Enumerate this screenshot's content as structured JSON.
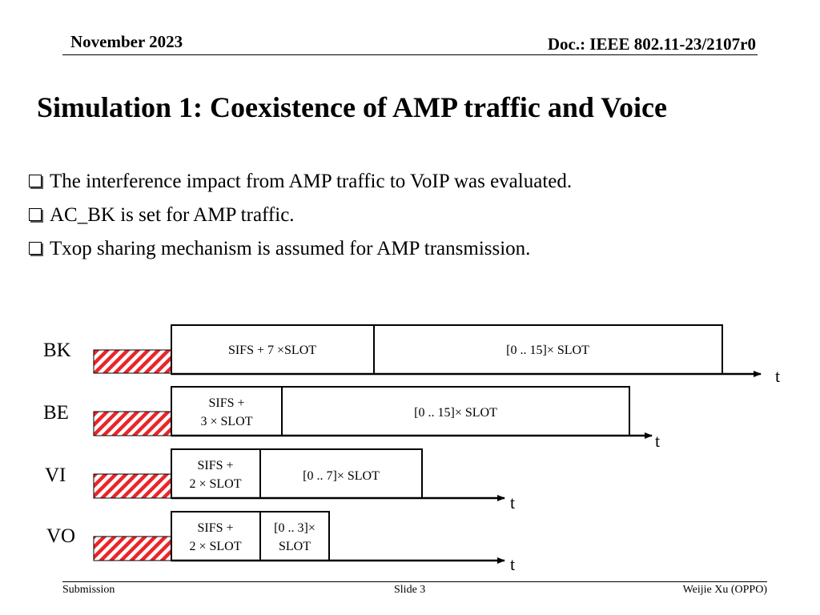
{
  "header": {
    "date": "November 2023",
    "doc": "Doc.: IEEE 802.11-23/2107r0"
  },
  "title": "Simulation 1: Coexistence of  AMP traffic and Voice",
  "bullets": [
    "The interference impact from AMP traffic to VoIP was evaluated.",
    "AC_BK is set for AMP traffic.",
    "Txop sharing mechanism is assumed for AMP transmission."
  ],
  "diagram": {
    "rows": [
      {
        "label": "BK",
        "aifs": [
          "SIFS + 7 ×SLOT"
        ],
        "backoff": [
          "[0 .. 15]× SLOT"
        ],
        "axis": "t"
      },
      {
        "label": "BE",
        "aifs": [
          "SIFS +",
          "3 × SLOT"
        ],
        "backoff": [
          "[0 .. 15]× SLOT"
        ],
        "axis": "t"
      },
      {
        "label": "VI",
        "aifs": [
          "SIFS +",
          "2 × SLOT"
        ],
        "backoff": [
          "[0 .. 7]× SLOT"
        ],
        "axis": "t"
      },
      {
        "label": "VO",
        "aifs": [
          "SIFS +",
          "2 × SLOT"
        ],
        "backoff": [
          "[0 .. 3]×",
          "SLOT"
        ],
        "axis": "t"
      }
    ],
    "colors": {
      "hatch_stripe": "#e8262a",
      "hatch_bg": "#ffffff",
      "outline": "#000000"
    }
  },
  "footer": {
    "left": "Submission",
    "center": "Slide 3",
    "right": "Weijie Xu (OPPO)"
  }
}
